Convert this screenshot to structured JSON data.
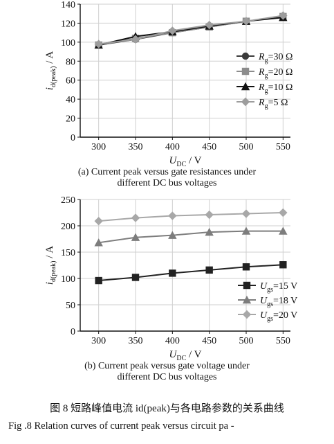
{
  "chart_data": [
    {
      "type": "line",
      "panel": "a",
      "xlabel": "U_DC / V",
      "ylabel": "i_d(peak) / A",
      "xlim": [
        275,
        560
      ],
      "ylim": [
        0,
        140
      ],
      "x_ticks": [
        300,
        350,
        400,
        450,
        500,
        550
      ],
      "y_ticks": [
        0,
        20,
        40,
        60,
        80,
        100,
        120,
        140
      ],
      "grid": true,
      "legend_position": "right",
      "x": [
        300,
        350,
        400,
        450,
        500,
        550
      ],
      "series": [
        {
          "name": "Rg=30 Ω",
          "color": "#3a3a3a",
          "marker": "circle",
          "values": [
            97,
            103,
            110,
            116,
            122,
            127
          ]
        },
        {
          "name": "Rg=20 Ω",
          "color": "#8c8c8c",
          "marker": "square",
          "values": [
            97,
            104,
            110,
            116,
            122,
            127
          ]
        },
        {
          "name": "Rg=10 Ω",
          "color": "#111111",
          "marker": "triangle",
          "values": [
            97,
            106,
            111,
            117,
            122,
            126
          ]
        },
        {
          "name": "Rg=5 Ω",
          "color": "#9d9d9d",
          "marker": "diamond",
          "values": [
            98,
            103,
            112,
            118,
            122,
            128
          ]
        }
      ]
    },
    {
      "type": "line",
      "panel": "b",
      "xlabel": "U_DC / V",
      "ylabel": "i_d(peak) / A",
      "xlim": [
        275,
        560
      ],
      "ylim": [
        0,
        250
      ],
      "x_ticks": [
        300,
        350,
        400,
        450,
        500,
        550
      ],
      "y_ticks": [
        0,
        50,
        100,
        150,
        200,
        250
      ],
      "grid": true,
      "legend_position": "bottom-right",
      "x": [
        300,
        350,
        400,
        450,
        500,
        550
      ],
      "series": [
        {
          "name": "Ugs=15 V",
          "color": "#222222",
          "marker": "square",
          "values": [
            96,
            102,
            110,
            116,
            122,
            126
          ]
        },
        {
          "name": "Ugs=18 V",
          "color": "#7d7d7d",
          "marker": "triangle",
          "values": [
            168,
            178,
            182,
            188,
            190,
            190
          ]
        },
        {
          "name": "Ugs=20 V",
          "color": "#a8a8a8",
          "marker": "diamond",
          "values": [
            209,
            215,
            219,
            221,
            223,
            225
          ]
        }
      ]
    }
  ],
  "captions": {
    "a": "(a) Current peak versus gate resistances under different DC bus voltages",
    "a_line1": "(a) Current peak versus gate resistances under",
    "a_line2": "different DC bus voltages",
    "b_line1": "(b) Current peak versus gate voltage under",
    "b_line2": "different DC bus voltages",
    "figure_cn": "图 8   短路峰值电流 id(peak)与各电路参数的关系曲线",
    "figure_en": "Fig .8   Relation curves of current peak versus circuit pa -"
  }
}
